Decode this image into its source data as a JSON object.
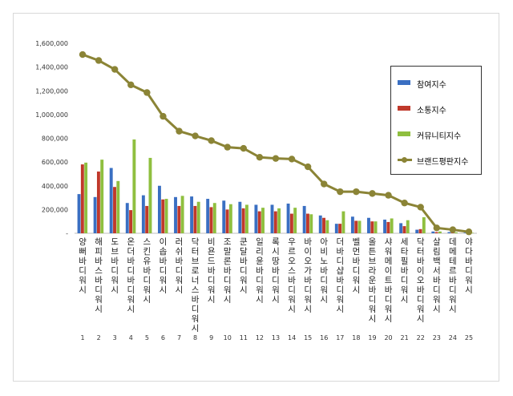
{
  "chart_data": {
    "type": "bar",
    "ylim": [
      0,
      1600000
    ],
    "yticks": [
      0,
      200000,
      400000,
      600000,
      800000,
      1000000,
      1200000,
      1400000,
      1600000
    ],
    "ytick_labels": [
      "-",
      "200,000",
      "400,000",
      "600,000",
      "800,000",
      "1,000,000",
      "1,200,000",
      "1,400,000",
      "1,600,000"
    ],
    "categories": [
      "양뻐 바디워시",
      "해피바스 바디워시",
      "도브 바디워시",
      "온더바디 바디워시",
      "스킨유 바디워시",
      "이솝 바디워시",
      "러쉬 바디워시",
      "닥터브로너스 바디워시",
      "비욘드 바디워시",
      "조말론 바디워시",
      "쿤달 바디워시",
      "일리윤 바디워시",
      "록시땅 바디워시",
      "우르오스 바디워시",
      "바이오가 바디워시",
      "아비노 바디워시",
      "더바디샵 바디워시",
      "벨먼 바디워시",
      "올튼브라운 바디워시",
      "샤워메이트 바디워시",
      "세타필 바디워시",
      "닥터바이오 바디워시",
      "살림백서 바디워시",
      "데메테르 바디워시",
      "야다 바디워시"
    ],
    "ranks": [
      "1",
      "2",
      "3",
      "4",
      "5",
      "6",
      "7",
      "8",
      "9",
      "10",
      "11",
      "12",
      "13",
      "14",
      "15",
      "16",
      "17",
      "18",
      "19",
      "20",
      "21",
      "22",
      "23",
      "24",
      "25"
    ],
    "series": [
      {
        "name": "참여지수",
        "color": "#3a6fc2",
        "kind": "bar",
        "values": [
          330000,
          305000,
          550000,
          255000,
          320000,
          400000,
          305000,
          310000,
          290000,
          275000,
          265000,
          240000,
          240000,
          250000,
          230000,
          150000,
          80000,
          140000,
          130000,
          115000,
          85000,
          30000,
          15000,
          10000,
          5000
        ]
      },
      {
        "name": "소통지수",
        "color": "#c0392b",
        "kind": "bar",
        "values": [
          580000,
          520000,
          390000,
          195000,
          230000,
          285000,
          230000,
          230000,
          220000,
          200000,
          210000,
          185000,
          185000,
          165000,
          165000,
          130000,
          80000,
          105000,
          100000,
          95000,
          60000,
          35000,
          10000,
          8000,
          3000
        ]
      },
      {
        "name": "커뮤니티지수",
        "color": "#8fbf3f",
        "kind": "bar",
        "values": [
          595000,
          620000,
          440000,
          790000,
          635000,
          290000,
          315000,
          265000,
          255000,
          245000,
          240000,
          215000,
          210000,
          215000,
          160000,
          110000,
          185000,
          105000,
          100000,
          125000,
          110000,
          135000,
          15000,
          8000,
          4000
        ]
      },
      {
        "name": "브랜드평판지수",
        "color": "#8b8436",
        "kind": "line",
        "values": [
          1505000,
          1455000,
          1380000,
          1250000,
          1185000,
          985000,
          860000,
          820000,
          780000,
          725000,
          715000,
          640000,
          630000,
          625000,
          560000,
          415000,
          350000,
          350000,
          335000,
          320000,
          255000,
          220000,
          45000,
          30000,
          12000
        ]
      }
    ],
    "legend": "right"
  }
}
